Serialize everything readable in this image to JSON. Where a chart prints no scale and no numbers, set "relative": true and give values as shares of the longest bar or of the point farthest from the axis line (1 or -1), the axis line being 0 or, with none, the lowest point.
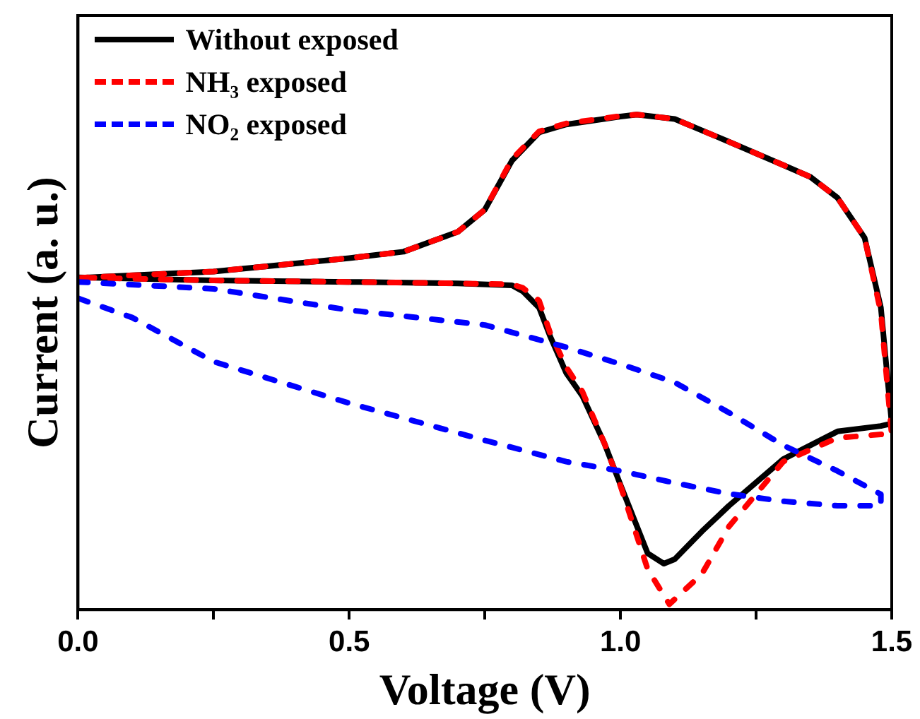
{
  "chart_data": {
    "type": "line",
    "xlabel": "Voltage (V)",
    "ylabel": "Current (a. u.)",
    "relative": true,
    "xlim": [
      0,
      1.5
    ],
    "xticks": [
      {
        "value": 0,
        "label": "0.0"
      },
      {
        "value": 0.25,
        "label": null
      },
      {
        "value": 0.5,
        "label": "0.5"
      },
      {
        "value": 0.75,
        "label": null
      },
      {
        "value": 1,
        "label": "1.0"
      },
      {
        "value": 1.25,
        "label": null
      },
      {
        "value": 1.5,
        "label": "1.5"
      }
    ],
    "legend": "top left",
    "grid": false,
    "marker": "none",
    "tick_labels": "x",
    "series": [
      {
        "name": "Without exposed",
        "color": "#000000",
        "line_style": "solid",
        "x": [
          0,
          0.25,
          0.5,
          0.6,
          0.7,
          0.75,
          0.8,
          0.85,
          0.9,
          1.0,
          1.03,
          1.1,
          1.2,
          1.3,
          1.35,
          1.4,
          1.45,
          1.48,
          1.5,
          1.48,
          1.4,
          1.3,
          1.2,
          1.15,
          1.1,
          1.08,
          1.05,
          1.0,
          0.97,
          0.93,
          0.9,
          0.87,
          0.85,
          0.82,
          0.8,
          0.7,
          0.5,
          0.25,
          0
        ],
        "values": [
          0.67,
          0.683,
          0.71,
          0.723,
          0.763,
          0.808,
          0.907,
          0.964,
          0.98,
          0.996,
          1.0,
          0.991,
          0.945,
          0.898,
          0.874,
          0.832,
          0.751,
          0.61,
          0.376,
          0.371,
          0.36,
          0.304,
          0.21,
          0.158,
          0.102,
          0.093,
          0.114,
          0.252,
          0.337,
          0.431,
          0.478,
          0.553,
          0.61,
          0.643,
          0.655,
          0.659,
          0.662,
          0.665,
          0.671
        ]
      },
      {
        "name": "NH₃ exposed",
        "color": "#ff0000",
        "line_style": "dashed",
        "x": [
          0,
          0.25,
          0.5,
          0.6,
          0.7,
          0.75,
          0.8,
          0.85,
          0.9,
          1.0,
          1.03,
          1.1,
          1.2,
          1.3,
          1.35,
          1.4,
          1.45,
          1.48,
          1.5,
          1.48,
          1.4,
          1.3,
          1.2,
          1.15,
          1.09,
          1.05,
          1.0,
          0.97,
          0.93,
          0.9,
          0.87,
          0.85,
          0.82,
          0.8,
          0.7,
          0.5,
          0.25,
          0
        ],
        "values": [
          0.67,
          0.683,
          0.71,
          0.723,
          0.763,
          0.808,
          0.91,
          0.966,
          0.982,
          0.997,
          1.0,
          0.991,
          0.945,
          0.898,
          0.874,
          0.832,
          0.751,
          0.6,
          0.352,
          0.354,
          0.347,
          0.299,
          0.168,
          0.072,
          0.011,
          0.082,
          0.25,
          0.337,
          0.44,
          0.49,
          0.56,
          0.624,
          0.65,
          0.657,
          0.659,
          0.662,
          0.665,
          0.671
        ]
      },
      {
        "name": "NO₂ exposed",
        "color": "#0000ff",
        "line_style": "dashed",
        "x": [
          0,
          0.25,
          0.5,
          0.75,
          0.9,
          1.0,
          1.1,
          1.2,
          1.3,
          1.4,
          1.48,
          1.48,
          1.4,
          1.3,
          1.2,
          1.1,
          1.0,
          0.9,
          0.75,
          0.5,
          0.25,
          0.1,
          0
        ],
        "values": [
          0.662,
          0.648,
          0.605,
          0.575,
          0.53,
          0.496,
          0.459,
          0.398,
          0.332,
          0.28,
          0.233,
          0.21,
          0.21,
          0.219,
          0.234,
          0.256,
          0.28,
          0.299,
          0.342,
          0.417,
          0.501,
          0.59,
          0.629
        ]
      }
    ]
  }
}
